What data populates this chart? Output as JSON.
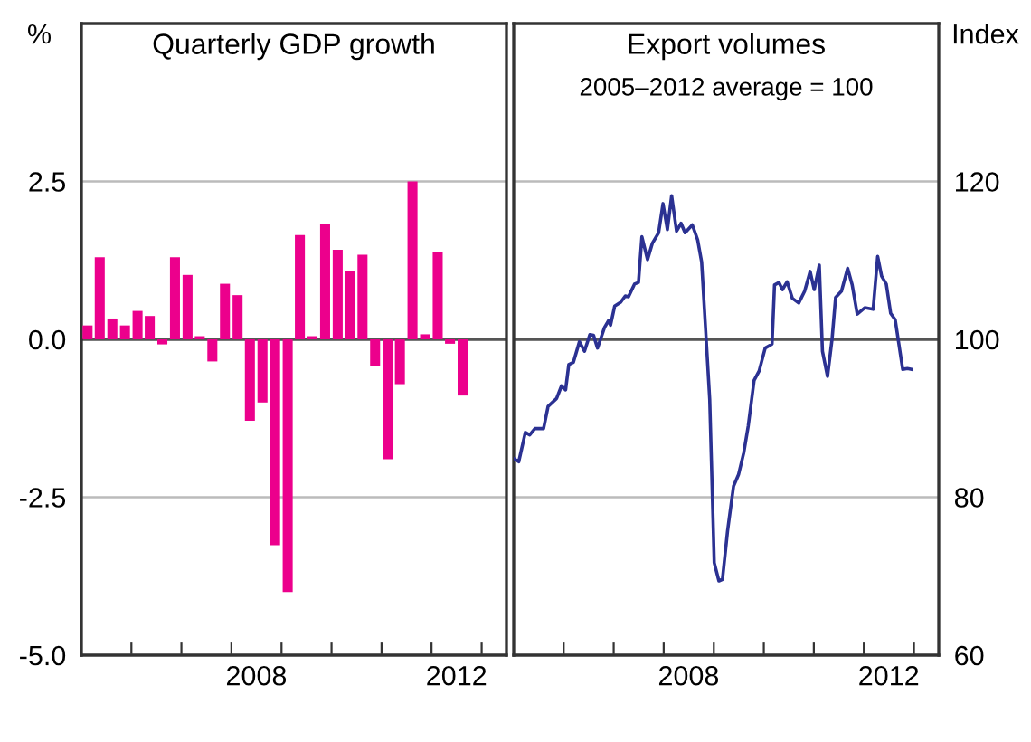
{
  "chart_data": [
    {
      "type": "bar",
      "title": "Quarterly GDP growth",
      "ylabel": "%",
      "color": "#ec008c",
      "x": [
        "2005-02-15",
        "2005-05-15",
        "2005-08-15",
        "2005-11-15",
        "2006-02-15",
        "2006-05-15",
        "2006-08-15",
        "2006-11-15",
        "2007-02-15",
        "2007-05-15",
        "2007-08-15",
        "2007-11-15",
        "2008-02-15",
        "2008-05-15",
        "2008-08-15",
        "2008-11-15",
        "2009-02-15",
        "2009-05-15",
        "2009-08-15",
        "2009-11-15",
        "2010-02-15",
        "2010-05-15",
        "2010-08-15",
        "2010-11-15",
        "2011-02-15",
        "2011-05-15",
        "2011-08-15",
        "2011-11-15",
        "2012-02-15",
        "2012-05-15",
        "2012-08-15"
      ],
      "values": [
        0.22,
        1.3,
        0.33,
        0.22,
        0.45,
        0.37,
        -0.08,
        1.3,
        1.02,
        0.05,
        -0.35,
        0.88,
        0.7,
        -1.29,
        -1.0,
        -3.26,
        -4.0,
        1.65,
        0.05,
        1.82,
        1.42,
        1.08,
        1.34,
        -0.43,
        -1.9,
        -0.71,
        2.5,
        0.08,
        1.39,
        -0.07,
        -0.89
      ],
      "xlim": [
        "2005-01-01",
        "2013-07-01"
      ],
      "xticks": [
        {
          "value": "2006-01-01",
          "label": null
        },
        {
          "value": "2007-01-01",
          "label": null
        },
        {
          "value": "2008-01-01",
          "label": null
        },
        {
          "value": "2008-07-01",
          "label": "2008"
        },
        {
          "value": "2009-01-01",
          "label": null
        },
        {
          "value": "2010-01-01",
          "label": null
        },
        {
          "value": "2011-01-01",
          "label": null
        },
        {
          "value": "2012-01-01",
          "label": null
        },
        {
          "value": "2012-07-01",
          "label": "2012"
        },
        {
          "value": "2013-01-01",
          "label": null
        }
      ],
      "ylim": [
        -5,
        5
      ],
      "yticks": [
        {
          "value": -5,
          "label": "-5.0"
        },
        {
          "value": -2.5,
          "label": "-2.5"
        },
        {
          "value": 0,
          "label": "0.0"
        },
        {
          "value": 2.5,
          "label": "2.5"
        }
      ],
      "grid": "y",
      "ref_lines": [
        {
          "axis": "y",
          "value": 0,
          "color": "#555555"
        }
      ]
    },
    {
      "type": "line",
      "title": "Export volumes",
      "subtitle": "2005–2012 average = 100",
      "y2label": "Index",
      "series": [
        {
          "color": "#2b3192",
          "axis": "y2",
          "x": [
            "2005-01-01",
            "2005-02-07",
            "2005-03-27",
            "2005-04-28",
            "2005-06-05",
            "2005-08-07",
            "2005-09-09",
            "2005-11-10",
            "2005-12-16",
            "2006-01-15",
            "2006-02-07",
            "2006-03-13",
            "2006-04-26",
            "2006-06-02",
            "2006-07-11",
            "2006-08-07",
            "2006-09-05",
            "2006-10-26",
            "2006-11-25",
            "2006-12-09",
            "2007-01-08",
            "2007-02-21",
            "2007-03-27",
            "2007-04-19",
            "2007-06-02",
            "2007-07-01",
            "2007-07-26",
            "2007-09-05",
            "2007-10-11",
            "2007-11-25",
            "2007-12-27",
            "2008-01-28",
            "2008-02-28",
            "2008-04-04",
            "2008-05-07",
            "2008-06-05",
            "2008-07-28",
            "2008-09-05",
            "2008-10-04",
            "2008-12-02",
            "2009-01-04",
            "2009-02-07",
            "2009-03-05",
            "2009-04-11",
            "2009-05-25",
            "2009-07-01",
            "2009-08-07",
            "2009-09-09",
            "2009-10-22",
            "2009-11-28",
            "2010-01-11",
            "2010-03-02",
            "2010-03-20",
            "2010-04-22",
            "2010-05-17",
            "2010-06-20",
            "2010-07-28",
            "2010-09-13",
            "2010-10-26",
            "2010-12-05",
            "2011-01-04",
            "2011-02-10",
            "2011-03-05",
            "2011-04-11",
            "2011-05-14",
            "2011-06-09",
            "2011-07-22",
            "2011-09-05",
            "2011-10-08",
            "2011-11-14",
            "2012-01-08",
            "2012-03-09",
            "2012-04-11",
            "2012-05-10",
            "2012-06-13",
            "2012-07-15",
            "2012-08-17",
            "2012-10-11",
            "2012-11-14",
            "2012-12-13"
          ],
          "values": [
            84.9,
            84.5,
            88.2,
            87.9,
            88.7,
            88.7,
            91.5,
            92.5,
            94.1,
            93.6,
            96.8,
            97.1,
            99.7,
            98.5,
            100.6,
            100.5,
            98.9,
            101.5,
            102.4,
            101.8,
            104.2,
            104.7,
            105.5,
            105.4,
            107.0,
            107.2,
            113.0,
            110.1,
            112.2,
            113.5,
            117.2,
            113.9,
            118.2,
            113.7,
            114.7,
            113.5,
            114.5,
            112.6,
            109.8,
            92.4,
            71.7,
            69.4,
            69.6,
            75.7,
            81.4,
            82.9,
            85.6,
            89.0,
            94.8,
            96.0,
            98.9,
            99.4,
            106.9,
            107.2,
            106.3,
            107.3,
            105.2,
            104.6,
            106.1,
            108.6,
            106.3,
            109.4,
            98.5,
            95.3,
            100.0,
            105.3,
            106.1,
            109.0,
            106.9,
            103.2,
            104.0,
            103.8,
            110.5,
            108.0,
            107.0,
            103.3,
            102.5,
            96.2,
            96.3,
            96.2
          ]
        }
      ],
      "xlim": [
        "2005-01-01",
        "2013-07-01"
      ],
      "xticks": [
        {
          "value": "2006-01-01",
          "label": null
        },
        {
          "value": "2007-01-01",
          "label": null
        },
        {
          "value": "2008-01-01",
          "label": null
        },
        {
          "value": "2008-07-01",
          "label": "2008"
        },
        {
          "value": "2009-01-01",
          "label": null
        },
        {
          "value": "2010-01-01",
          "label": null
        },
        {
          "value": "2011-01-01",
          "label": null
        },
        {
          "value": "2012-01-01",
          "label": null
        },
        {
          "value": "2012-07-01",
          "label": "2012"
        },
        {
          "value": "2013-01-01",
          "label": null
        }
      ],
      "y2lim": [
        60,
        140
      ],
      "y2ticks": [
        60,
        80,
        100,
        120
      ],
      "grid": "y",
      "ref_lines": [
        {
          "axis": "y2",
          "value": 100,
          "color": "#555555"
        }
      ]
    }
  ]
}
